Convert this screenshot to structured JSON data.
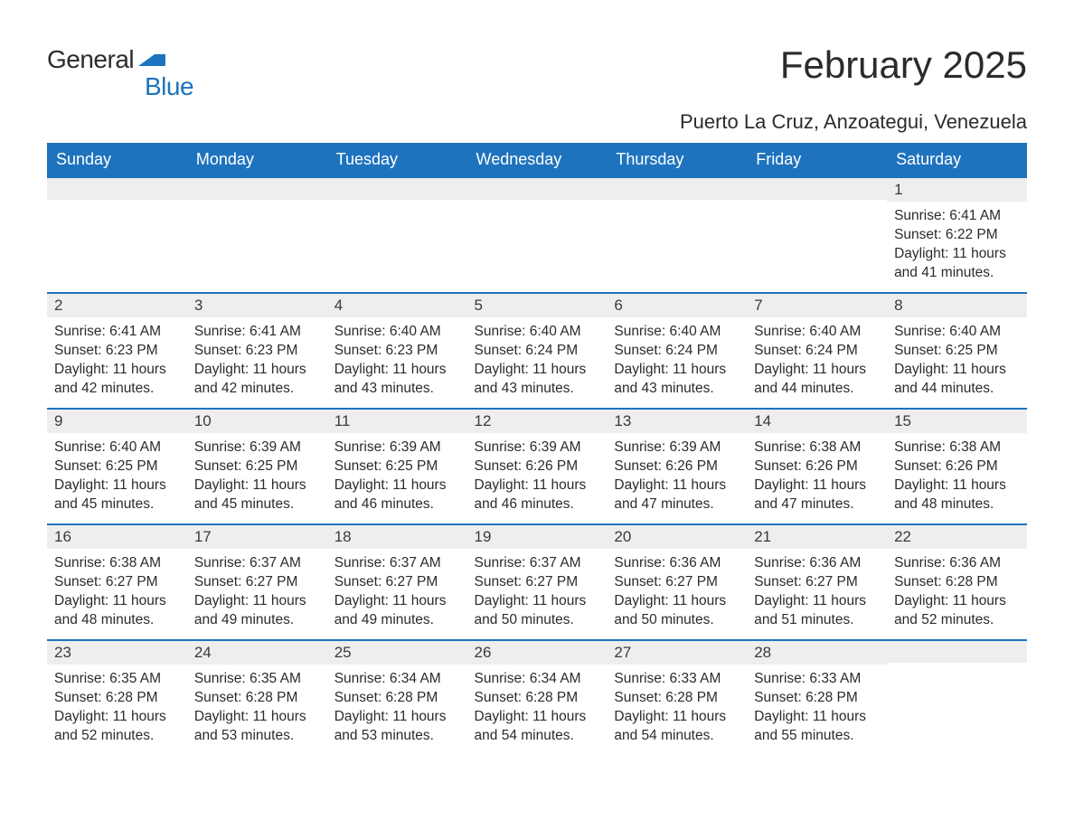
{
  "logo": {
    "text1": "General",
    "text2": "Blue",
    "accent_color": "#1e73be"
  },
  "title": "February 2025",
  "location": "Puerto La Cruz, Anzoategui, Venezuela",
  "colors": {
    "header_bg": "#1e73be",
    "header_text": "#ffffff",
    "daynum_bg": "#eeeeee",
    "row_border": "#1e73be",
    "body_text": "#2b2b2b",
    "page_bg": "#ffffff"
  },
  "weekday_labels": [
    "Sunday",
    "Monday",
    "Tuesday",
    "Wednesday",
    "Thursday",
    "Friday",
    "Saturday"
  ],
  "weeks": [
    [
      {
        "day": "",
        "sunrise": "",
        "sunset": "",
        "daylight": ""
      },
      {
        "day": "",
        "sunrise": "",
        "sunset": "",
        "daylight": ""
      },
      {
        "day": "",
        "sunrise": "",
        "sunset": "",
        "daylight": ""
      },
      {
        "day": "",
        "sunrise": "",
        "sunset": "",
        "daylight": ""
      },
      {
        "day": "",
        "sunrise": "",
        "sunset": "",
        "daylight": ""
      },
      {
        "day": "",
        "sunrise": "",
        "sunset": "",
        "daylight": ""
      },
      {
        "day": "1",
        "sunrise": "Sunrise: 6:41 AM",
        "sunset": "Sunset: 6:22 PM",
        "daylight": "Daylight: 11 hours and 41 minutes."
      }
    ],
    [
      {
        "day": "2",
        "sunrise": "Sunrise: 6:41 AM",
        "sunset": "Sunset: 6:23 PM",
        "daylight": "Daylight: 11 hours and 42 minutes."
      },
      {
        "day": "3",
        "sunrise": "Sunrise: 6:41 AM",
        "sunset": "Sunset: 6:23 PM",
        "daylight": "Daylight: 11 hours and 42 minutes."
      },
      {
        "day": "4",
        "sunrise": "Sunrise: 6:40 AM",
        "sunset": "Sunset: 6:23 PM",
        "daylight": "Daylight: 11 hours and 43 minutes."
      },
      {
        "day": "5",
        "sunrise": "Sunrise: 6:40 AM",
        "sunset": "Sunset: 6:24 PM",
        "daylight": "Daylight: 11 hours and 43 minutes."
      },
      {
        "day": "6",
        "sunrise": "Sunrise: 6:40 AM",
        "sunset": "Sunset: 6:24 PM",
        "daylight": "Daylight: 11 hours and 43 minutes."
      },
      {
        "day": "7",
        "sunrise": "Sunrise: 6:40 AM",
        "sunset": "Sunset: 6:24 PM",
        "daylight": "Daylight: 11 hours and 44 minutes."
      },
      {
        "day": "8",
        "sunrise": "Sunrise: 6:40 AM",
        "sunset": "Sunset: 6:25 PM",
        "daylight": "Daylight: 11 hours and 44 minutes."
      }
    ],
    [
      {
        "day": "9",
        "sunrise": "Sunrise: 6:40 AM",
        "sunset": "Sunset: 6:25 PM",
        "daylight": "Daylight: 11 hours and 45 minutes."
      },
      {
        "day": "10",
        "sunrise": "Sunrise: 6:39 AM",
        "sunset": "Sunset: 6:25 PM",
        "daylight": "Daylight: 11 hours and 45 minutes."
      },
      {
        "day": "11",
        "sunrise": "Sunrise: 6:39 AM",
        "sunset": "Sunset: 6:25 PM",
        "daylight": "Daylight: 11 hours and 46 minutes."
      },
      {
        "day": "12",
        "sunrise": "Sunrise: 6:39 AM",
        "sunset": "Sunset: 6:26 PM",
        "daylight": "Daylight: 11 hours and 46 minutes."
      },
      {
        "day": "13",
        "sunrise": "Sunrise: 6:39 AM",
        "sunset": "Sunset: 6:26 PM",
        "daylight": "Daylight: 11 hours and 47 minutes."
      },
      {
        "day": "14",
        "sunrise": "Sunrise: 6:38 AM",
        "sunset": "Sunset: 6:26 PM",
        "daylight": "Daylight: 11 hours and 47 minutes."
      },
      {
        "day": "15",
        "sunrise": "Sunrise: 6:38 AM",
        "sunset": "Sunset: 6:26 PM",
        "daylight": "Daylight: 11 hours and 48 minutes."
      }
    ],
    [
      {
        "day": "16",
        "sunrise": "Sunrise: 6:38 AM",
        "sunset": "Sunset: 6:27 PM",
        "daylight": "Daylight: 11 hours and 48 minutes."
      },
      {
        "day": "17",
        "sunrise": "Sunrise: 6:37 AM",
        "sunset": "Sunset: 6:27 PM",
        "daylight": "Daylight: 11 hours and 49 minutes."
      },
      {
        "day": "18",
        "sunrise": "Sunrise: 6:37 AM",
        "sunset": "Sunset: 6:27 PM",
        "daylight": "Daylight: 11 hours and 49 minutes."
      },
      {
        "day": "19",
        "sunrise": "Sunrise: 6:37 AM",
        "sunset": "Sunset: 6:27 PM",
        "daylight": "Daylight: 11 hours and 50 minutes."
      },
      {
        "day": "20",
        "sunrise": "Sunrise: 6:36 AM",
        "sunset": "Sunset: 6:27 PM",
        "daylight": "Daylight: 11 hours and 50 minutes."
      },
      {
        "day": "21",
        "sunrise": "Sunrise: 6:36 AM",
        "sunset": "Sunset: 6:27 PM",
        "daylight": "Daylight: 11 hours and 51 minutes."
      },
      {
        "day": "22",
        "sunrise": "Sunrise: 6:36 AM",
        "sunset": "Sunset: 6:28 PM",
        "daylight": "Daylight: 11 hours and 52 minutes."
      }
    ],
    [
      {
        "day": "23",
        "sunrise": "Sunrise: 6:35 AM",
        "sunset": "Sunset: 6:28 PM",
        "daylight": "Daylight: 11 hours and 52 minutes."
      },
      {
        "day": "24",
        "sunrise": "Sunrise: 6:35 AM",
        "sunset": "Sunset: 6:28 PM",
        "daylight": "Daylight: 11 hours and 53 minutes."
      },
      {
        "day": "25",
        "sunrise": "Sunrise: 6:34 AM",
        "sunset": "Sunset: 6:28 PM",
        "daylight": "Daylight: 11 hours and 53 minutes."
      },
      {
        "day": "26",
        "sunrise": "Sunrise: 6:34 AM",
        "sunset": "Sunset: 6:28 PM",
        "daylight": "Daylight: 11 hours and 54 minutes."
      },
      {
        "day": "27",
        "sunrise": "Sunrise: 6:33 AM",
        "sunset": "Sunset: 6:28 PM",
        "daylight": "Daylight: 11 hours and 54 minutes."
      },
      {
        "day": "28",
        "sunrise": "Sunrise: 6:33 AM",
        "sunset": "Sunset: 6:28 PM",
        "daylight": "Daylight: 11 hours and 55 minutes."
      },
      {
        "day": "",
        "sunrise": "",
        "sunset": "",
        "daylight": ""
      }
    ]
  ]
}
